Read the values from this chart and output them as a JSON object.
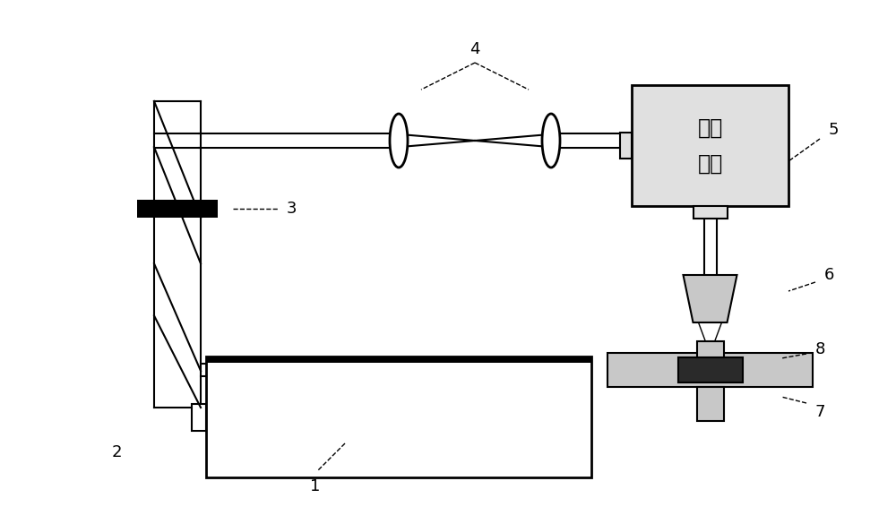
{
  "bg_color": "#ffffff",
  "line_color": "#000000",
  "gray_fill": "#c8c8c8",
  "light_gray": "#e0e0e0",
  "dark_piece": "#2a2a2a",
  "laser_text_line1": "激光",
  "laser_text_line2": "振镖",
  "font_size_label": 13,
  "font_size_chinese": 17,
  "lw": 1.5,
  "lw2": 2.0
}
